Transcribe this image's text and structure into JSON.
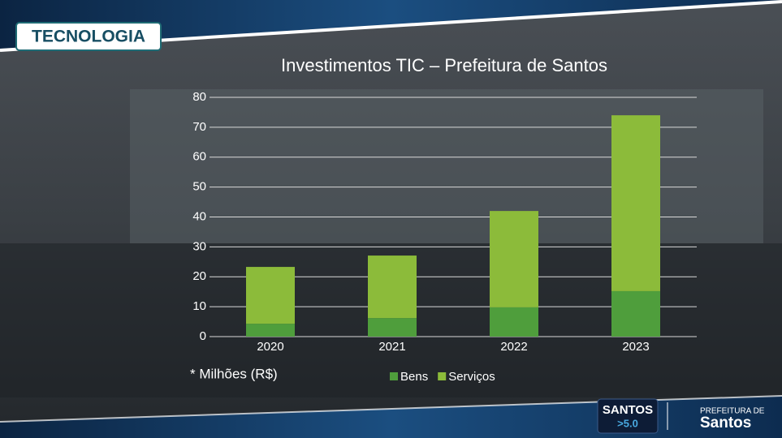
{
  "chart_data": {
    "type": "stacked_bar",
    "title": "Investimentos TIC – Prefeitura de Santos",
    "categories": [
      "2020",
      "2021",
      "2022",
      "2023"
    ],
    "series": [
      {
        "name": "Bens",
        "color": "#4f9e3c",
        "values": [
          4.3,
          6.2,
          9.8,
          15.2
        ]
      },
      {
        "name": "Serviços",
        "color": "#8cbb3a",
        "values": [
          19,
          20.9,
          32.2,
          58.8
        ]
      }
    ],
    "ylim": [
      0,
      80
    ],
    "yticks": [
      0,
      10,
      20,
      30,
      40,
      50,
      60,
      70,
      80
    ],
    "grid": true,
    "legend": "bottom",
    "note": "* Milhões (R$)"
  },
  "slide": {
    "tag": "TECNOLOGIA",
    "badge": [
      "SANTOS",
      ">5.0"
    ],
    "logo": [
      "PREFEITURA DE",
      "Santos"
    ]
  }
}
